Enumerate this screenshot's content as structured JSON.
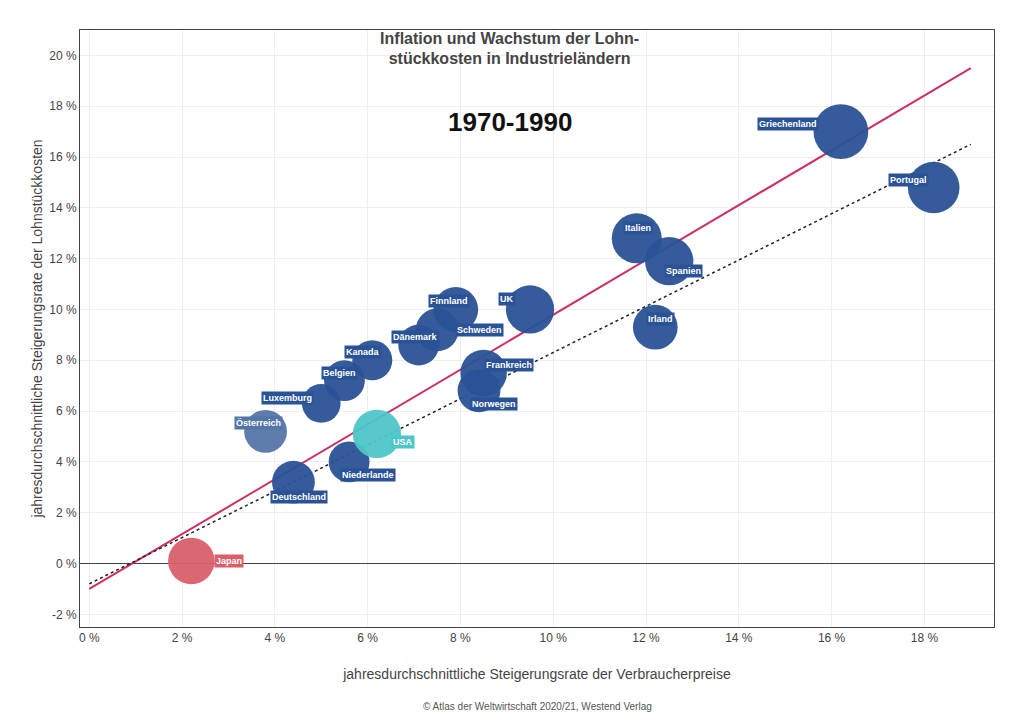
{
  "chart_data": {
    "type": "scatter",
    "title": "Inflation und Wachstum der Lohn-\nstückkosten in Industrieländern",
    "subtitle": "1970-1990",
    "xlabel": "jahresdurchschnittliche Steigerungsrate der Verbraucherpreise",
    "ylabel": "jahresdurchschnittliche Steigerungsrate der Lohnstückkosten",
    "caption": "© Atlas der Weltwirtschaft 2020/21, Westend Verlag",
    "grid": true,
    "xlim": [
      -0.2,
      19.5
    ],
    "ylim": [
      -2.5,
      21.0
    ],
    "xticks": [
      {
        "value": 0,
        "label": "0 %"
      },
      {
        "value": 2,
        "label": "2 %"
      },
      {
        "value": 4,
        "label": "4 %"
      },
      {
        "value": 6,
        "label": "6 %"
      },
      {
        "value": 8,
        "label": "8 %"
      },
      {
        "value": 10,
        "label": "10 %"
      },
      {
        "value": 12,
        "label": "12 %"
      },
      {
        "value": 14,
        "label": "14 %"
      },
      {
        "value": 16,
        "label": "16 %"
      },
      {
        "value": 18,
        "label": "18 %"
      }
    ],
    "yticks": [
      {
        "value": -2,
        "label": "-2 %"
      },
      {
        "value": 0,
        "label": "0 %"
      },
      {
        "value": 2,
        "label": "2 %"
      },
      {
        "value": 4,
        "label": "4 %"
      },
      {
        "value": 6,
        "label": "6 %"
      },
      {
        "value": 8,
        "label": "8 %"
      },
      {
        "value": 10,
        "label": "10 %"
      },
      {
        "value": 12,
        "label": "12 %"
      },
      {
        "value": 14,
        "label": "14 %"
      },
      {
        "value": 16,
        "label": "16 %"
      },
      {
        "value": 18,
        "label": "18 %"
      },
      {
        "value": 20,
        "label": "20 %"
      }
    ],
    "series": [
      {
        "type": "line",
        "x": [
          0.0,
          19.0
        ],
        "y": [
          -1.0,
          19.5
        ],
        "color": "#cc3066",
        "line_style": "solid"
      },
      {
        "type": "line",
        "x": [
          0.0,
          19.0
        ],
        "y": [
          -0.8,
          16.5
        ],
        "color": "#222222",
        "line_style": "dotted"
      },
      {
        "type": "scatter",
        "data_labels": true,
        "names": [
          "Japan",
          "Österreich",
          "Deutschland",
          "Luxemburg",
          "Belgien",
          "Niederlande",
          "USA",
          "Kanada",
          "Dänemark",
          "Schweden",
          "Finnland",
          "Norwegen",
          "Frankreich",
          "UK",
          "Irland",
          "Spanien",
          "Italien",
          "Griechenland",
          "Portugal"
        ],
        "x": [
          2.2,
          3.8,
          4.4,
          5.0,
          5.5,
          5.6,
          6.2,
          6.1,
          7.1,
          7.5,
          7.9,
          8.4,
          8.5,
          9.5,
          12.2,
          12.5,
          11.8,
          16.2,
          18.2
        ],
        "y": [
          0.1,
          5.2,
          3.2,
          6.3,
          7.2,
          4.0,
          5.1,
          8.0,
          8.6,
          9.2,
          10.0,
          6.8,
          7.5,
          10.0,
          9.3,
          11.9,
          12.8,
          17.0,
          14.8
        ],
        "sizes": [
          650,
          550,
          550,
          450,
          500,
          500,
          700,
          480,
          500,
          550,
          600,
          550,
          650,
          700,
          600,
          700,
          750,
          900,
          800
        ],
        "colors": [
          "#d95f6a",
          "#5575a8",
          "#2a5296",
          "#2a5296",
          "#2a5296",
          "#2a5296",
          "#4ec5c8",
          "#2a5296",
          "#2a5296",
          "#2a5296",
          "#2a5296",
          "#2a5296",
          "#2a5296",
          "#2a5296",
          "#2a5296",
          "#2a5296",
          "#2a5296",
          "#2a5296",
          "#2a5296"
        ]
      }
    ]
  }
}
